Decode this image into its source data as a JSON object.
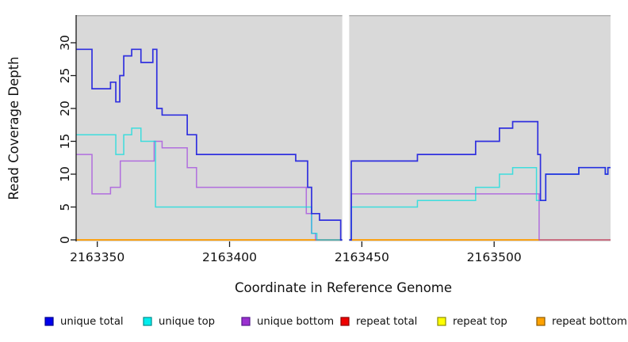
{
  "chart_data": {
    "type": "line",
    "subtype": "step-after",
    "title": "",
    "xlabel": "Coordinate in Reference Genome",
    "ylabel": "Read Coverage Depth",
    "xlim": [
      2163342,
      2163544
    ],
    "ylim": [
      0,
      34.2
    ],
    "x_ticks": [
      2163350,
      2163400,
      2163450,
      2163500
    ],
    "y_ticks": [
      0,
      5,
      10,
      15,
      20,
      25,
      30
    ],
    "grid": false,
    "plot_bg_color": "#d9d9d9",
    "plot_top_edge_color": "#b0b0b0",
    "axis_color": "#1a1a1a",
    "gap_band": {
      "x_start": 2163442.6,
      "x_end": 2163445.2,
      "color": "#ffffff"
    },
    "legend_position": "bottom",
    "draw_order": [
      "repeat total",
      "repeat top",
      "repeat bottom",
      "unique bottom",
      "unique top",
      "unique total"
    ],
    "series": [
      {
        "name": "unique total",
        "line_color": "#2222e0",
        "line_opacity": 0.92,
        "line_width": 1.7,
        "points": [
          [
            2163342,
            29
          ],
          [
            2163348,
            23
          ],
          [
            2163355,
            24
          ],
          [
            2163357,
            21
          ],
          [
            2163358.5,
            25
          ],
          [
            2163360,
            28
          ],
          [
            2163363,
            29
          ],
          [
            2163366.5,
            27
          ],
          [
            2163371,
            29
          ],
          [
            2163372.5,
            20
          ],
          [
            2163374.5,
            19
          ],
          [
            2163384,
            16
          ],
          [
            2163387.5,
            13
          ],
          [
            2163425,
            12
          ],
          [
            2163429.5,
            8
          ],
          [
            2163431,
            4
          ],
          [
            2163434,
            3
          ],
          [
            2163442,
            0
          ],
          [
            2163446,
            12
          ],
          [
            2163471,
            13
          ],
          [
            2163493,
            15
          ],
          [
            2163502,
            17
          ],
          [
            2163507,
            18
          ],
          [
            2163516.5,
            13
          ],
          [
            2163517.5,
            6
          ],
          [
            2163519.5,
            10
          ],
          [
            2163532,
            11
          ],
          [
            2163542,
            10
          ],
          [
            2163543,
            11
          ],
          [
            2163544,
            11
          ]
        ]
      },
      {
        "name": "unique top",
        "line_color": "#00dede",
        "line_opacity": 0.72,
        "line_width": 1.5,
        "points": [
          [
            2163342,
            16
          ],
          [
            2163357,
            13
          ],
          [
            2163360,
            16
          ],
          [
            2163363,
            17
          ],
          [
            2163366.5,
            15
          ],
          [
            2163372,
            5
          ],
          [
            2163431,
            1
          ],
          [
            2163433,
            0
          ],
          [
            2163446,
            5
          ],
          [
            2163471,
            6
          ],
          [
            2163493,
            8
          ],
          [
            2163502,
            10
          ],
          [
            2163507,
            11
          ],
          [
            2163516,
            6
          ],
          [
            2163519.5,
            10
          ],
          [
            2163532,
            11
          ],
          [
            2163542,
            10
          ],
          [
            2163543,
            11
          ],
          [
            2163544,
            11
          ]
        ]
      },
      {
        "name": "unique bottom",
        "line_color": "#a040e0",
        "line_opacity": 0.7,
        "line_width": 1.5,
        "points": [
          [
            2163342,
            13
          ],
          [
            2163348,
            7
          ],
          [
            2163355,
            8
          ],
          [
            2163358.7,
            12
          ],
          [
            2163371.5,
            15
          ],
          [
            2163374.5,
            14
          ],
          [
            2163384,
            11
          ],
          [
            2163387.5,
            8
          ],
          [
            2163429,
            4
          ],
          [
            2163431,
            1
          ],
          [
            2163432.5,
            0
          ],
          [
            2163446,
            7
          ],
          [
            2163517,
            0
          ],
          [
            2163544,
            0
          ]
        ]
      },
      {
        "name": "repeat total",
        "line_color": "#e00000",
        "line_opacity": 1,
        "line_width": 1.5,
        "points": [
          [
            2163342,
            0
          ],
          [
            2163544,
            0
          ]
        ]
      },
      {
        "name": "repeat top",
        "line_color": "#f5f500",
        "line_opacity": 1,
        "line_width": 1.5,
        "points": [
          [
            2163342,
            0
          ],
          [
            2163544,
            0
          ]
        ]
      },
      {
        "name": "repeat bottom",
        "line_color": "#ff9d0a",
        "line_opacity": 1,
        "line_width": 1.6,
        "points": [
          [
            2163342,
            0
          ],
          [
            2163544,
            0
          ]
        ]
      }
    ],
    "legend": [
      {
        "label": "unique total",
        "fill": "#0000ee",
        "border": "#00008b"
      },
      {
        "label": "unique top",
        "fill": "#00eded",
        "border": "#008b8b"
      },
      {
        "label": "unique bottom",
        "fill": "#9b30d0",
        "border": "#551a8b"
      },
      {
        "label": "repeat total",
        "fill": "#ee0000",
        "border": "#8b0000"
      },
      {
        "label": "repeat top",
        "fill": "#ffff00",
        "border": "#8b8b00"
      },
      {
        "label": "repeat bottom",
        "fill": "#ffa200",
        "border": "#8b5a00"
      }
    ]
  }
}
